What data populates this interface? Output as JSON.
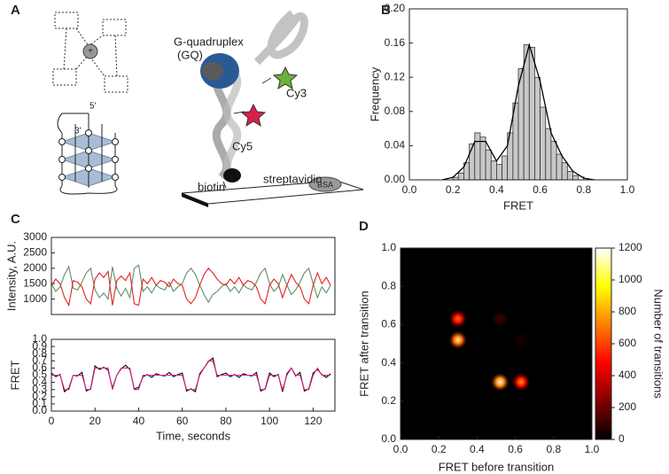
{
  "panel_labels": [
    "A",
    "B",
    "C",
    "D"
  ],
  "diagram": {
    "gq_label": [
      "G-quadruplex",
      "(GQ)"
    ],
    "cy3": "Cy3",
    "cy5": "Cy5",
    "streptavidin": "streptavidin",
    "biotin": "biotin",
    "bsa": "BSA",
    "five_prime": "5'",
    "three_prime": "3'"
  },
  "chart_data": [
    {
      "type": "histogram",
      "xlabel": "FRET",
      "ylabel": "Frequency",
      "color": "#c8c8c8",
      "bins": [
        0.2,
        0.225,
        0.25,
        0.275,
        0.3,
        0.325,
        0.35,
        0.375,
        0.4,
        0.425,
        0.45,
        0.475,
        0.5,
        0.525,
        0.55,
        0.575,
        0.6,
        0.625,
        0.65,
        0.675,
        0.7,
        0.725,
        0.75,
        0.775
      ],
      "values": [
        0.003,
        0.008,
        0.02,
        0.042,
        0.055,
        0.05,
        0.035,
        0.022,
        0.018,
        0.028,
        0.055,
        0.09,
        0.13,
        0.158,
        0.155,
        0.12,
        0.085,
        0.06,
        0.045,
        0.03,
        0.02,
        0.01,
        0.005
      ],
      "fit": {
        "color": "#000000",
        "x": [
          0.15,
          0.2,
          0.25,
          0.3,
          0.35,
          0.4,
          0.45,
          0.5,
          0.55,
          0.6,
          0.65,
          0.7,
          0.75,
          0.8,
          0.85
        ],
        "values": [
          0,
          0.003,
          0.015,
          0.045,
          0.045,
          0.022,
          0.04,
          0.11,
          0.158,
          0.115,
          0.055,
          0.028,
          0.01,
          0.002,
          0
        ]
      },
      "xlim": [
        0,
        1
      ],
      "ylim": [
        0,
        0.2
      ],
      "xticks": [
        {
          "value": 0,
          "label": "0.0"
        },
        0.2,
        0.4,
        0.6,
        0.8,
        {
          "value": 1,
          "label": "1.0"
        }
      ],
      "yticks": [
        {
          "value": 0,
          "label": "0.00"
        },
        {
          "value": 0.04,
          "label": "0.04"
        },
        {
          "value": 0.08,
          "label": "0.08"
        },
        {
          "value": 0.12,
          "label": "0.12"
        },
        {
          "value": 0.16,
          "label": "0.16"
        },
        {
          "value": 0.2,
          "label": "0.20"
        }
      ]
    },
    {
      "type": "line",
      "ylabel": "Intensity, A.U.",
      "x": [
        0,
        2,
        4,
        6,
        8,
        10,
        12,
        14,
        16,
        18,
        20,
        22,
        24,
        26,
        28,
        30,
        32,
        34,
        36,
        38,
        40,
        42,
        44,
        46,
        48,
        50,
        52,
        54,
        56,
        58,
        60,
        62,
        64,
        66,
        68,
        70,
        72,
        74,
        76,
        78,
        80,
        82,
        84,
        86,
        88,
        90,
        92,
        94,
        96,
        98,
        100,
        102,
        104,
        106,
        108,
        110,
        112,
        114,
        116,
        118,
        120,
        122,
        124,
        126,
        128
      ],
      "series": [
        {
          "color": "#5f8f66",
          "values": [
            1500,
            1250,
            1400,
            1800,
            2050,
            1350,
            1300,
            1550,
            1850,
            2000,
            1300,
            1050,
            1200,
            1000,
            2050,
            1350,
            1100,
            1350,
            1050,
            2000,
            2100,
            1250,
            1400,
            1200,
            1450,
            1350,
            1300,
            1550,
            1250,
            1400,
            1500,
            1850,
            2000,
            1800,
            1450,
            1150,
            900,
            1150,
            1250,
            1400,
            1500,
            1250,
            1400,
            1200,
            1450,
            1350,
            1300,
            1550,
            1850,
            2000,
            1500,
            1250,
            1400,
            1800,
            1450,
            1150,
            1300,
            1550,
            1850,
            2000,
            1500,
            1050,
            1400,
            1200,
            1450
          ]
        },
        {
          "color": "#e3221f",
          "values": [
            1450,
            1650,
            1500,
            1050,
            800,
            1600,
            1550,
            1400,
            1000,
            850,
            1650,
            1850,
            1700,
            1900,
            800,
            1600,
            1750,
            1600,
            1850,
            850,
            800,
            1650,
            1500,
            1700,
            1450,
            1600,
            1550,
            1400,
            1650,
            1500,
            1450,
            1000,
            850,
            1050,
            1450,
            1800,
            2000,
            1850,
            1650,
            1500,
            1450,
            1650,
            1500,
            1700,
            1450,
            1600,
            1550,
            1400,
            1000,
            850,
            1450,
            1650,
            1500,
            1050,
            1450,
            1800,
            1550,
            1400,
            1000,
            850,
            1450,
            1850,
            1500,
            1700,
            1450
          ]
        }
      ],
      "xlim": [
        0,
        130
      ],
      "ylim": [
        500,
        3000
      ],
      "yticks": [
        1000,
        1500,
        2000,
        2500,
        3000
      ]
    },
    {
      "type": "line",
      "xlabel": "Time, seconds",
      "ylabel": "FRET",
      "x": [
        0,
        2,
        4,
        6,
        8,
        10,
        12,
        14,
        16,
        18,
        20,
        22,
        24,
        26,
        28,
        30,
        32,
        34,
        36,
        38,
        40,
        42,
        44,
        46,
        48,
        50,
        52,
        54,
        56,
        58,
        60,
        62,
        64,
        66,
        68,
        70,
        72,
        74,
        76,
        78,
        80,
        82,
        84,
        86,
        88,
        90,
        92,
        94,
        96,
        98,
        100,
        102,
        104,
        106,
        108,
        110,
        112,
        114,
        116,
        118,
        120,
        122,
        124,
        126,
        128
      ],
      "series": [
        {
          "color": "#000000",
          "values": [
            0.53,
            0.48,
            0.51,
            0.27,
            0.32,
            0.5,
            0.49,
            0.54,
            0.28,
            0.31,
            0.63,
            0.58,
            0.61,
            0.57,
            0.32,
            0.5,
            0.59,
            0.64,
            0.58,
            0.31,
            0.33,
            0.48,
            0.51,
            0.47,
            0.52,
            0.5,
            0.49,
            0.54,
            0.48,
            0.51,
            0.53,
            0.28,
            0.31,
            0.27,
            0.52,
            0.6,
            0.69,
            0.74,
            0.48,
            0.51,
            0.53,
            0.48,
            0.51,
            0.47,
            0.52,
            0.5,
            0.49,
            0.54,
            0.28,
            0.31,
            0.53,
            0.48,
            0.51,
            0.27,
            0.52,
            0.6,
            0.49,
            0.54,
            0.28,
            0.31,
            0.53,
            0.58,
            0.51,
            0.47,
            0.52
          ]
        },
        {
          "color": "#e0208a",
          "values": [
            0.5,
            0.5,
            0.5,
            0.3,
            0.3,
            0.5,
            0.5,
            0.5,
            0.3,
            0.3,
            0.6,
            0.6,
            0.6,
            0.6,
            0.3,
            0.5,
            0.6,
            0.6,
            0.6,
            0.3,
            0.3,
            0.5,
            0.5,
            0.5,
            0.5,
            0.5,
            0.5,
            0.5,
            0.5,
            0.5,
            0.5,
            0.3,
            0.3,
            0.3,
            0.5,
            0.6,
            0.7,
            0.7,
            0.5,
            0.5,
            0.5,
            0.5,
            0.5,
            0.5,
            0.5,
            0.5,
            0.5,
            0.5,
            0.3,
            0.3,
            0.5,
            0.5,
            0.5,
            0.3,
            0.5,
            0.6,
            0.5,
            0.5,
            0.3,
            0.3,
            0.5,
            0.6,
            0.5,
            0.5,
            0.5
          ]
        }
      ],
      "xlim": [
        0,
        130
      ],
      "ylim": [
        0,
        1
      ],
      "xticks": [
        0,
        20,
        40,
        60,
        80,
        100,
        120
      ],
      "yticks": [
        {
          "value": 0,
          "label": "0.0"
        },
        0.1,
        0.2,
        0.3,
        0.4,
        0.5,
        0.6,
        0.7,
        0.8,
        0.9,
        {
          "value": 1,
          "label": "1.0"
        }
      ]
    },
    {
      "type": "heatmap",
      "xlabel": "FRET before transition",
      "ylabel": "FRET after transition",
      "colorbar_label": "Number of transitions",
      "colormap": "hot",
      "x": [
        0.3,
        0.3,
        0.52,
        0.63,
        0.52,
        0.63
      ],
      "y": [
        0.63,
        0.52,
        0.3,
        0.3,
        0.63,
        0.52
      ],
      "values": [
        700,
        1100,
        1200,
        800,
        120,
        60
      ],
      "xlim": [
        0,
        1
      ],
      "ylim": [
        0,
        1
      ],
      "clim": [
        0,
        1200
      ],
      "xticks": [
        {
          "value": 0,
          "label": "0.0"
        },
        0.2,
        0.4,
        0.6,
        0.8,
        {
          "value": 1,
          "label": "1.0"
        }
      ],
      "yticks": [
        {
          "value": 0,
          "label": "0.0"
        },
        0.2,
        0.4,
        0.6,
        0.8,
        {
          "value": 1,
          "label": "1.0"
        }
      ],
      "cticks": [
        0,
        200,
        400,
        600,
        800,
        1000,
        1200
      ]
    }
  ]
}
